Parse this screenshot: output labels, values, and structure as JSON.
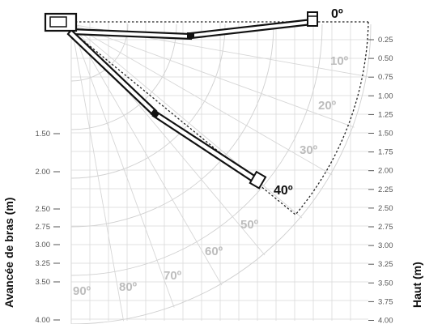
{
  "left_axis": {
    "title": "Avancée de bras (m)",
    "ticks": [
      {
        "label": "1.50",
        "value": 1.5
      },
      {
        "label": "2.00",
        "value": 2.0
      },
      {
        "label": "2.50",
        "value": 2.5
      },
      {
        "label": "2.75",
        "value": 2.75
      },
      {
        "label": "3.00",
        "value": 3.0
      },
      {
        "label": "3.25",
        "value": 3.25
      },
      {
        "label": "3.50",
        "value": 3.5
      },
      {
        "label": "4.00",
        "value": 4.0
      }
    ]
  },
  "right_axis": {
    "title": "Haut (m)",
    "ticks": [
      "0.25",
      "0.50",
      "0.75",
      "1.00",
      "1.25",
      "1.50",
      "1.75",
      "2.00",
      "2.25",
      "2.50",
      "2.75",
      "3.00",
      "3.25",
      "3.50",
      "3.75",
      "4.00"
    ]
  },
  "angle_labels": {
    "highlighted": [
      "0º",
      "40º"
    ],
    "faint": [
      "10º",
      "20º",
      "30º",
      "50º",
      "60º",
      "70º",
      "80º",
      "90º"
    ]
  },
  "colors": {
    "grid": "#d9d9d9",
    "faint_label": "#bdbdbd",
    "arm": "#111111",
    "envelope": "#222222"
  }
}
